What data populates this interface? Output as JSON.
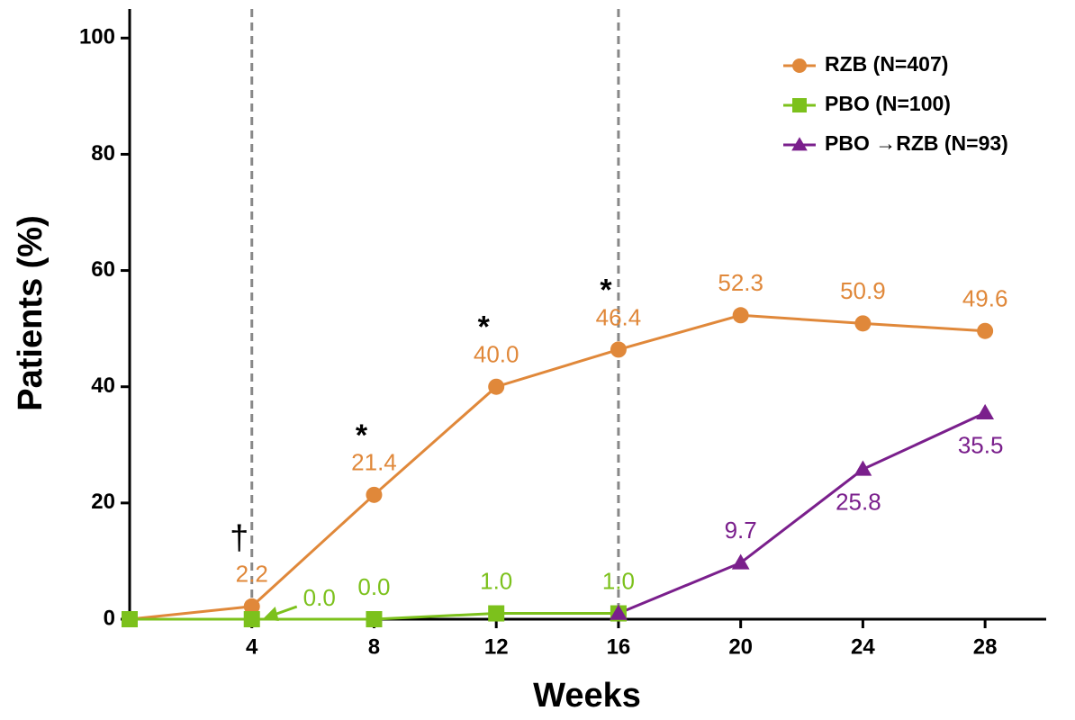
{
  "chart_data": {
    "type": "line",
    "x_label": "Weeks",
    "y_label": "Patients (%)",
    "xlim": [
      0,
      30
    ],
    "xticks": [
      4,
      8,
      12,
      16,
      20,
      24,
      28
    ],
    "ylim": [
      0,
      105
    ],
    "yticks": [
      0,
      20,
      40,
      60,
      80,
      100
    ],
    "vlines": [
      4,
      16
    ],
    "legend": "top-right",
    "series": [
      {
        "name": "RZB (N=407)",
        "color": "#e0883a",
        "marker": "circle",
        "x": [
          0,
          4,
          8,
          12,
          16,
          20,
          24,
          28
        ],
        "values": [
          0,
          2.2,
          21.4,
          40.0,
          46.4,
          52.3,
          50.9,
          49.6
        ],
        "value_labels": [
          null,
          "2.2",
          "21.4",
          "40.0",
          "46.4",
          "52.3",
          "50.9",
          "49.6"
        ]
      },
      {
        "name": "PBO (N=100)",
        "color": "#7cc11c",
        "marker": "square",
        "x": [
          0,
          4,
          8,
          12,
          16
        ],
        "values": [
          0,
          0,
          0,
          1.0,
          1.0
        ],
        "value_labels": [
          null,
          "0.0",
          "0.0",
          "1.0",
          "1.0"
        ]
      },
      {
        "name": "PBO →RZB (N=93)",
        "color": "#7a1f8c",
        "marker": "triangle",
        "x": [
          16,
          20,
          24,
          28
        ],
        "values": [
          1.0,
          9.7,
          25.8,
          35.5
        ],
        "value_labels": [
          null,
          "9.7",
          "25.8",
          "35.5"
        ]
      }
    ],
    "annotations": [
      {
        "text": "†",
        "x": 4
      },
      {
        "text": "*",
        "x": 8
      },
      {
        "text": "*",
        "x": 12
      },
      {
        "text": "*",
        "x": 16
      }
    ]
  }
}
